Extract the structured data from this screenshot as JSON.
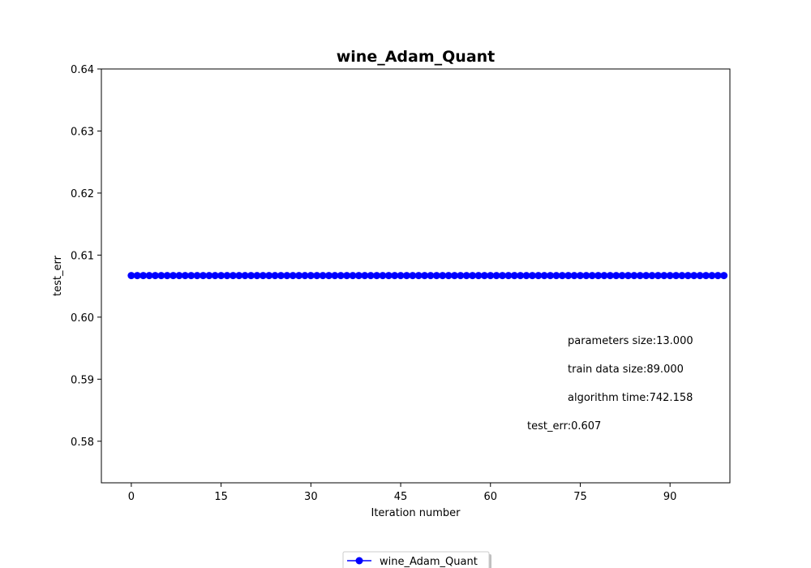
{
  "chart_data": {
    "type": "line",
    "title": "wine_Adam_Quant",
    "xlabel": "Iteration number",
    "ylabel": "test_err",
    "xlim": [
      -5,
      100
    ],
    "ylim": [
      0.5733,
      0.64
    ],
    "xticks": [
      0,
      15,
      30,
      45,
      60,
      75,
      90
    ],
    "yticks": [
      0.58,
      0.59,
      0.6,
      0.61,
      0.62,
      0.63,
      0.64
    ],
    "ytick_labels": [
      "0.58",
      "0.59",
      "0.60",
      "0.61",
      "0.62",
      "0.63",
      "0.64"
    ],
    "grid": false,
    "legend_position": "bottom-center",
    "series": [
      {
        "name": "wine_Adam_Quant",
        "color": "#0000ff",
        "marker": "circle",
        "x_start": 0,
        "x_end": 99,
        "values": [
          0.6067,
          0.6067,
          0.6067,
          0.6067,
          0.6067,
          0.6067,
          0.6067,
          0.6067,
          0.6067,
          0.6067,
          0.6067,
          0.6067,
          0.6067,
          0.6067,
          0.6067,
          0.6067,
          0.6067,
          0.6067,
          0.6067,
          0.6067,
          0.6067,
          0.6067,
          0.6067,
          0.6067,
          0.6067,
          0.6067,
          0.6067,
          0.6067,
          0.6067,
          0.6067,
          0.6067,
          0.6067,
          0.6067,
          0.6067,
          0.6067,
          0.6067,
          0.6067,
          0.6067,
          0.6067,
          0.6067,
          0.6067,
          0.6067,
          0.6067,
          0.6067,
          0.6067,
          0.6067,
          0.6067,
          0.6067,
          0.6067,
          0.6067,
          0.6067,
          0.6067,
          0.6067,
          0.6067,
          0.6067,
          0.6067,
          0.6067,
          0.6067,
          0.6067,
          0.6067,
          0.6067,
          0.6067,
          0.6067,
          0.6067,
          0.6067,
          0.6067,
          0.6067,
          0.6067,
          0.6067,
          0.6067,
          0.6067,
          0.6067,
          0.6067,
          0.6067,
          0.6067,
          0.6067,
          0.6067,
          0.6067,
          0.6067,
          0.6067,
          0.6067,
          0.6067,
          0.6067,
          0.6067,
          0.6067,
          0.6067,
          0.6067,
          0.6067,
          0.6067,
          0.6067,
          0.6067,
          0.6067,
          0.6067,
          0.6067,
          0.6067,
          0.6067,
          0.6067,
          0.6067,
          0.6067,
          0.6067
        ]
      }
    ],
    "annotations": [
      "parameters size:13.000",
      "train data size:89.000",
      "algorithm time:742.158",
      "test_err:0.607"
    ]
  }
}
